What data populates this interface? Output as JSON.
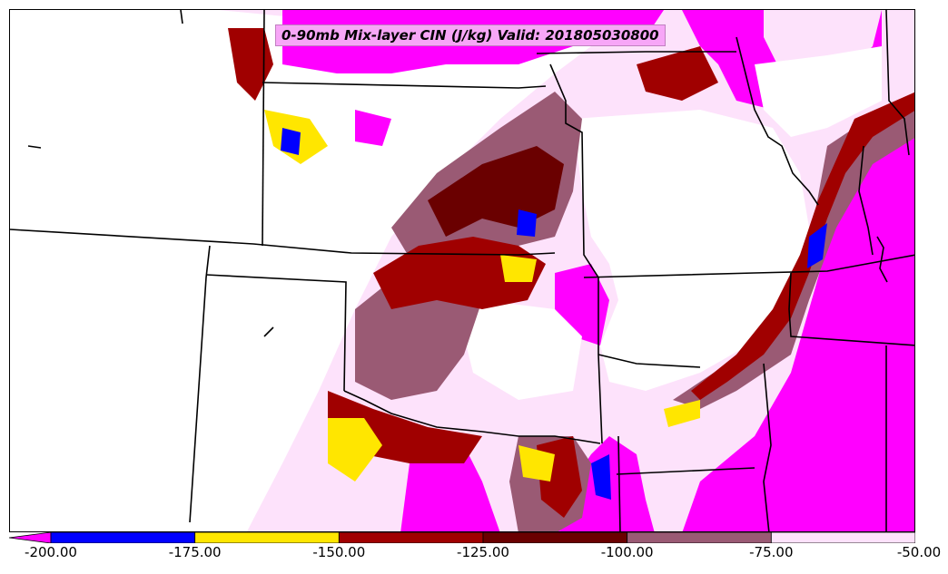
{
  "map": {
    "title": "0-90mb Mix-layer CIN (J/kg) Valid: 201805030800",
    "variable": "0-90mb Mix-layer CIN",
    "units": "J/kg",
    "valid_time": "201805030800"
  },
  "legend": {
    "min_arrow_color": "#ff00ff",
    "bins": [
      {
        "from": -200,
        "to": -175,
        "color": "#0000ff"
      },
      {
        "from": -175,
        "to": -150,
        "color": "#ffe600"
      },
      {
        "from": -150,
        "to": -125,
        "color": "#a00000"
      },
      {
        "from": -125,
        "to": -100,
        "color": "#6a0000"
      },
      {
        "from": -100,
        "to": -75,
        "color": "#9a5a74"
      },
      {
        "from": -75,
        "to": -50,
        "color": "#fde2fb"
      }
    ],
    "tick_labels": [
      "-200.00",
      "-175.00",
      "-150.00",
      "-125.00",
      "-100.00",
      "-75.00",
      "-50.00"
    ]
  },
  "colors": {
    "magenta": "#ff00ff",
    "blue": "#0000ff",
    "yellow": "#ffe600",
    "dark_red": "#a00000",
    "maroon": "#6a0000",
    "mauve": "#9a5a74",
    "light_pink": "#fde2fb",
    "border": "#000000"
  }
}
